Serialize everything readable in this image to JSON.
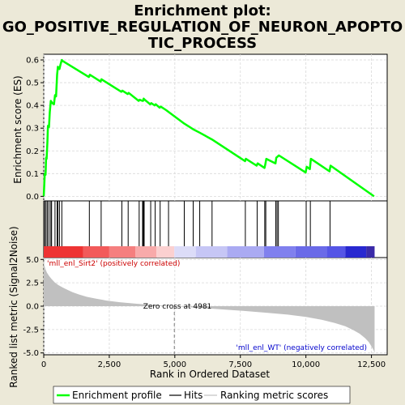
{
  "chart_data": {
    "type": "line",
    "title_lines": [
      "Enrichment plot:",
      "GO_POSITIVE_REGULATION_OF_NEURON_APOPTO",
      "TIC_PROCESS"
    ],
    "top_panel": {
      "ylabel": "Enrichment score (ES)",
      "ylim": [
        -0.02,
        0.625
      ],
      "yticks": [
        "0.0",
        "0.1",
        "0.2",
        "0.3",
        "0.4",
        "0.5",
        "0.6"
      ],
      "ytick_values": [
        0.0,
        0.1,
        0.2,
        0.3,
        0.4,
        0.5,
        0.6
      ],
      "series": [
        {
          "name": "Enrichment profile",
          "color": "#00ff00",
          "x": [
            0,
            40,
            70,
            90,
            110,
            140,
            160,
            200,
            230,
            270,
            300,
            330,
            390,
            430,
            470,
            510,
            540,
            570,
            600,
            640,
            690,
            730,
            1720,
            1760,
            2170,
            2200,
            2960,
            3000,
            3200,
            3240,
            3620,
            3660,
            3760,
            3790,
            3810,
            3850,
            4060,
            4100,
            4230,
            4270,
            4420,
            4460,
            4660,
            5360,
            5700,
            5950,
            6420,
            7680,
            7710,
            8120,
            8160,
            8420,
            8450,
            8490,
            8840,
            8870,
            8920,
            8970,
            9990,
            10030,
            10150,
            10190,
            10900,
            10940,
            12600
          ],
          "y": [
            0.0,
            0.1,
            0.095,
            0.17,
            0.165,
            0.24,
            0.31,
            0.305,
            0.37,
            0.42,
            0.415,
            0.41,
            0.405,
            0.445,
            0.44,
            0.535,
            0.57,
            0.565,
            0.56,
            0.58,
            0.6,
            0.595,
            0.525,
            0.535,
            0.505,
            0.515,
            0.46,
            0.465,
            0.45,
            0.455,
            0.42,
            0.425,
            0.42,
            0.42,
            0.43,
            0.425,
            0.405,
            0.41,
            0.4,
            0.405,
            0.39,
            0.395,
            0.38,
            0.32,
            0.295,
            0.28,
            0.25,
            0.155,
            0.165,
            0.135,
            0.145,
            0.125,
            0.14,
            0.165,
            0.145,
            0.17,
            0.175,
            0.18,
            0.105,
            0.13,
            0.12,
            0.165,
            0.11,
            0.135,
            0.0
          ]
        }
      ]
    },
    "hits": {
      "name": "Hits",
      "color": "#000000",
      "positions": [
        40,
        90,
        140,
        200,
        270,
        300,
        430,
        510,
        540,
        600,
        690,
        1740,
        2190,
        2980,
        3220,
        3640,
        3770,
        3800,
        3830,
        4080,
        4250,
        4440,
        4760,
        5360,
        5700,
        5950,
        6420,
        7690,
        8140,
        8430,
        8470,
        8850,
        8900,
        8950,
        10010,
        10170,
        10920
      ]
    },
    "ranked_list_panel": {
      "ylabel": "Ranked list metric (Signal2Noise)",
      "ylim": [
        -5.2,
        5.2
      ],
      "yticks": [
        "5.0",
        "2.5",
        "0.0",
        "-2.5",
        "-5.0"
      ],
      "ytick_values": [
        5.0,
        2.5,
        0.0,
        -2.5,
        -5.0
      ],
      "metric_profile": {
        "name": "Ranking metric scores",
        "color": "#c0c0c0",
        "x": [
          0,
          20,
          60,
          120,
          200,
          300,
          420,
          560,
          720,
          900,
          1100,
          1350,
          1650,
          2000,
          2400,
          2900,
          3500,
          4200,
          4981,
          5800,
          6700,
          7600,
          8500,
          9300,
          10000,
          10600,
          11100,
          11500,
          11800,
          12050,
          12250,
          12400,
          12500,
          12580,
          12620
        ],
        "y": [
          5.1,
          4.4,
          4.0,
          3.6,
          3.25,
          2.9,
          2.55,
          2.25,
          2.0,
          1.75,
          1.5,
          1.25,
          1.0,
          0.8,
          0.6,
          0.42,
          0.27,
          0.12,
          0.0,
          -0.15,
          -0.32,
          -0.5,
          -0.7,
          -0.9,
          -1.15,
          -1.45,
          -1.8,
          -2.15,
          -2.55,
          -2.95,
          -3.4,
          -3.85,
          -4.3,
          -4.7,
          -5.0
        ]
      },
      "annotations": {
        "zero_cross": "Zero cross at 4981",
        "zero_cross_x": 4981,
        "positive_label": "'mll_enl_Sirt2' (positively correlated)",
        "negative_label": "'mll_enl_WT' (negatively correlated)",
        "positive_color": "#cc0000",
        "negative_color": "#0000cc"
      }
    },
    "heatmap_bar": {
      "segments": [
        {
          "from": 0,
          "to": 1500,
          "color": "#ee3333"
        },
        {
          "from": 1500,
          "to": 2500,
          "color": "#f25a5a"
        },
        {
          "from": 2500,
          "to": 3500,
          "color": "#f57f7f"
        },
        {
          "from": 3500,
          "to": 4300,
          "color": "#f8aaaa"
        },
        {
          "from": 4300,
          "to": 4981,
          "color": "#fbd0d0"
        },
        {
          "from": 4981,
          "to": 5800,
          "color": "#dcdcf8"
        },
        {
          "from": 5800,
          "to": 7000,
          "color": "#c6c6f5"
        },
        {
          "from": 7000,
          "to": 8400,
          "color": "#aaaaf2"
        },
        {
          "from": 8400,
          "to": 9600,
          "color": "#8080ee"
        },
        {
          "from": 9600,
          "to": 10800,
          "color": "#6a6ae8"
        },
        {
          "from": 10800,
          "to": 11500,
          "color": "#5555e6"
        },
        {
          "from": 11500,
          "to": 12300,
          "color": "#2828d0"
        },
        {
          "from": 12300,
          "to": 12620,
          "color": "#3a2aa8"
        }
      ]
    },
    "x_axis": {
      "label": "Rank in Ordered Dataset",
      "xlim": [
        0,
        13100
      ],
      "ticks": [
        "0",
        "2,500",
        "5,000",
        "7,500",
        "10,000",
        "12,500"
      ],
      "tick_values": [
        0,
        2500,
        5000,
        7500,
        10000,
        12500
      ]
    },
    "legend": {
      "placement": "bottom",
      "items": [
        {
          "label": "Enrichment profile",
          "color": "#00ff00",
          "kind": "line-thick"
        },
        {
          "label": "Hits",
          "color": "#000000",
          "kind": "line"
        },
        {
          "label": "Ranking metric scores",
          "color": "#c0c0c0",
          "kind": "line"
        }
      ]
    },
    "grid": true
  }
}
